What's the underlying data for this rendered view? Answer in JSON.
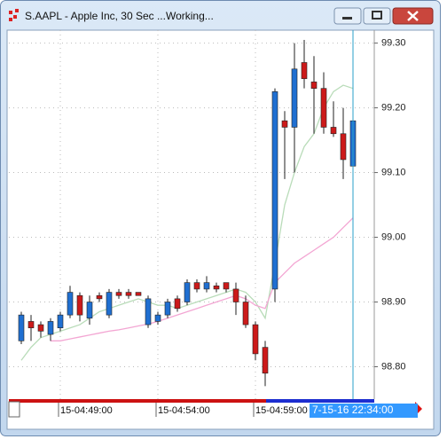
{
  "window": {
    "title": "S.AAPL - Apple Inc, 30 Sec ...Working..."
  },
  "chart_data": {
    "type": "candlestick",
    "categories": [
      null,
      null,
      null,
      null,
      "15-04:49:00",
      null,
      null,
      null,
      null,
      null,
      null,
      null,
      null,
      null,
      "15-04:54:00",
      null,
      null,
      null,
      null,
      null,
      null,
      null,
      null,
      null,
      "15-04:59:00",
      null,
      null,
      null,
      null,
      null,
      null,
      null,
      null,
      null,
      null
    ],
    "cursor_label": "7-15-16 22:34:00",
    "up_color": "#1f6fd1",
    "down_color": "#cc1a1a",
    "open": [
      98.84,
      98.87,
      98.865,
      98.85,
      98.86,
      98.88,
      98.91,
      98.875,
      98.91,
      98.88,
      98.915,
      98.915,
      98.915,
      98.865,
      98.87,
      98.88,
      98.905,
      98.9,
      98.93,
      98.92,
      98.925,
      98.93,
      98.92,
      98.9,
      98.865,
      98.83,
      98.92,
      99.18,
      99.17,
      99.27,
      99.24,
      99.23,
      99.17,
      99.16,
      99.11
    ],
    "high": [
      98.885,
      98.88,
      98.87,
      98.875,
      98.885,
      98.925,
      98.915,
      98.91,
      98.915,
      98.92,
      98.92,
      98.92,
      98.915,
      98.91,
      98.885,
      98.905,
      98.91,
      98.935,
      98.935,
      98.94,
      98.93,
      98.93,
      98.93,
      98.91,
      98.87,
      98.84,
      99.23,
      99.195,
      99.3,
      99.305,
      99.28,
      99.255,
      99.21,
      99.2,
      99.2
    ],
    "low": [
      98.835,
      98.84,
      98.845,
      98.84,
      98.855,
      98.875,
      98.87,
      98.865,
      98.9,
      98.875,
      98.905,
      98.905,
      98.91,
      98.86,
      98.865,
      98.875,
      98.885,
      98.895,
      98.915,
      98.915,
      98.915,
      98.915,
      98.88,
      98.86,
      98.81,
      98.77,
      98.9,
      99.09,
      99.1,
      99.23,
      99.16,
      99.16,
      99.155,
      99.09,
      99.07
    ],
    "close": [
      98.88,
      98.86,
      98.855,
      98.87,
      98.88,
      98.915,
      98.88,
      98.9,
      98.905,
      98.915,
      98.91,
      98.91,
      98.91,
      98.905,
      98.88,
      98.9,
      98.89,
      98.93,
      98.92,
      98.93,
      98.92,
      98.92,
      98.9,
      98.865,
      98.82,
      98.79,
      99.225,
      99.17,
      99.26,
      99.245,
      99.23,
      99.17,
      99.16,
      99.12,
      99.18
    ],
    "lines": [
      {
        "color": "#b9dcb9",
        "values": [
          98.81,
          98.83,
          98.845,
          98.85,
          98.855,
          98.86,
          98.865,
          98.875,
          98.885,
          98.89,
          98.895,
          98.9,
          98.905,
          98.9,
          98.895,
          98.895,
          98.89,
          98.895,
          98.9,
          98.905,
          98.91,
          98.915,
          98.92,
          98.915,
          98.9,
          98.875,
          98.96,
          99.05,
          99.1,
          99.14,
          99.16,
          99.2,
          99.225,
          99.235,
          99.23
        ]
      },
      {
        "color": "#f3a6d3",
        "values": [
          null,
          null,
          null,
          98.84,
          98.84,
          98.843,
          98.846,
          98.849,
          98.852,
          98.855,
          98.857,
          98.86,
          98.863,
          98.866,
          98.87,
          98.875,
          98.88,
          98.885,
          98.89,
          98.895,
          98.9,
          98.905,
          98.91,
          98.905,
          98.895,
          98.89,
          98.93,
          98.945,
          98.96,
          98.97,
          98.98,
          98.99,
          99.0,
          99.015,
          99.03
        ]
      }
    ],
    "ylim": [
      98.75,
      99.32
    ],
    "yticks": [
      {
        "value": 98.8,
        "label": "98.80"
      },
      {
        "value": 98.9,
        "label": "98.90"
      },
      {
        "value": 99.0,
        "label": "99.00"
      },
      {
        "value": 99.1,
        "label": "99.10"
      },
      {
        "value": 99.2,
        "label": "99.20"
      },
      {
        "value": 99.3,
        "label": "99.30"
      }
    ],
    "grid": true
  }
}
